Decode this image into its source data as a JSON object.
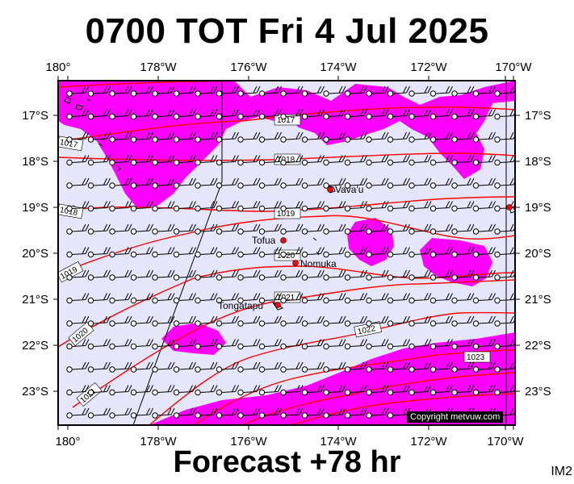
{
  "title": "0700 TOT Fri 4 Jul 2025",
  "forecast": "Forecast +78 hr",
  "corner_label": "IM2",
  "copyright": "Copyright metvuw.com",
  "axes": {
    "top_lon": [
      "180°",
      "178°W",
      "176°W",
      "174°W",
      "172°W",
      "170°W"
    ],
    "bottom_lon": [
      "180°",
      "178°W",
      "176°W",
      "174°W",
      "172°W",
      "170°W"
    ],
    "left_lat": [
      "17°S",
      "18°S",
      "19°S",
      "20°S",
      "21°S",
      "22°S",
      "23°S"
    ],
    "right_lat": [
      "17°S",
      "18°S",
      "19°S",
      "20°S",
      "21°S",
      "22°S",
      "23°S"
    ]
  },
  "isobars": [
    "1017",
    "1018",
    "1019",
    "1020",
    "1021",
    "1022",
    "1023",
    "1017",
    "1018",
    "1019",
    "1020",
    "1021"
  ],
  "places": [
    "Vava'u",
    "Tofua",
    "Nomuka",
    "Tongatapu"
  ],
  "colors": {
    "background": "#e6e6fa",
    "rain": "#ff00ff",
    "isobar": "#ff0000",
    "place_marker": "#ff0000"
  }
}
